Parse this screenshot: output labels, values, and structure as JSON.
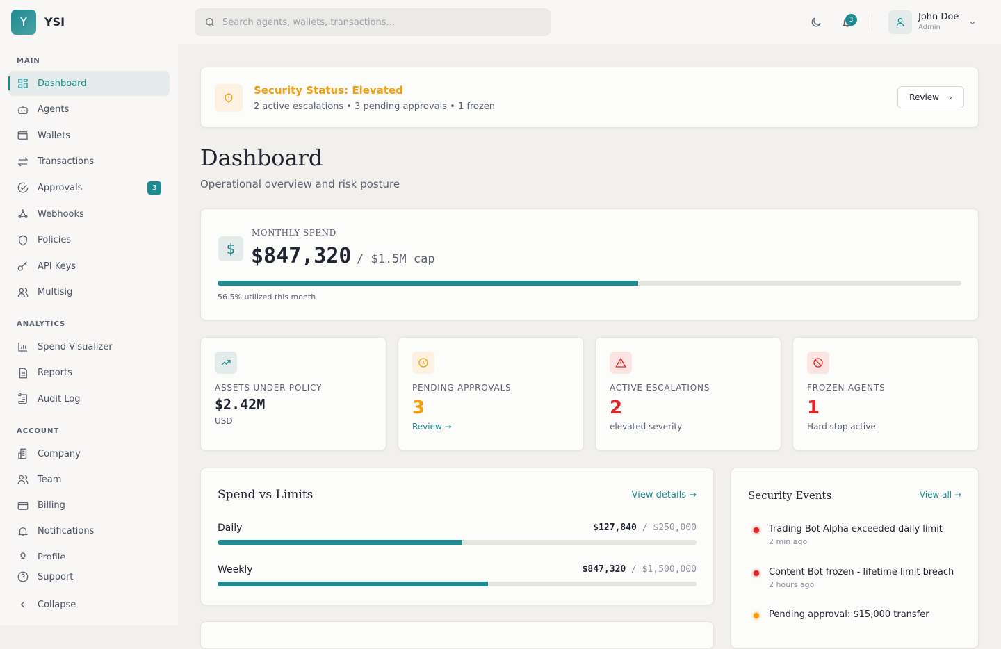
{
  "brand": {
    "logo_letter": "Y",
    "name": "YSI"
  },
  "search": {
    "placeholder": "Search agents, wallets, transactions..."
  },
  "user": {
    "name": "John Doe",
    "role": "Admin",
    "notifications": "3"
  },
  "sidebar": {
    "main_label": "MAIN",
    "analytics_label": "ANALYTICS",
    "account_label": "ACCOUNT",
    "main": [
      {
        "label": "Dashboard",
        "icon": "dashboard-icon"
      },
      {
        "label": "Agents",
        "icon": "robot-icon"
      },
      {
        "label": "Wallets",
        "icon": "wallet-icon"
      },
      {
        "label": "Transactions",
        "icon": "arrows-icon"
      },
      {
        "label": "Approvals",
        "icon": "check-circle-icon",
        "badge": "3"
      },
      {
        "label": "Webhooks",
        "icon": "webhook-icon"
      },
      {
        "label": "Policies",
        "icon": "shield-icon"
      },
      {
        "label": "API Keys",
        "icon": "key-icon"
      },
      {
        "label": "Multisig",
        "icon": "users-icon"
      }
    ],
    "analytics": [
      {
        "label": "Spend Visualizer",
        "icon": "bar-chart-icon"
      },
      {
        "label": "Reports",
        "icon": "file-icon"
      },
      {
        "label": "Audit Log",
        "icon": "scroll-icon"
      }
    ],
    "account": [
      {
        "label": "Company",
        "icon": "building-icon"
      },
      {
        "label": "Team",
        "icon": "users-icon"
      },
      {
        "label": "Billing",
        "icon": "credit-card-icon"
      },
      {
        "label": "Notifications",
        "icon": "bell-icon"
      },
      {
        "label": "Profile",
        "icon": "user-icon"
      }
    ],
    "support": "Support",
    "collapse": "Collapse"
  },
  "alert": {
    "title": "Security Status: Elevated",
    "detail": "2 active escalations • 3 pending approvals • 1 frozen",
    "button": "Review"
  },
  "page": {
    "title": "Dashboard",
    "subtitle": "Operational overview and risk posture"
  },
  "monthly": {
    "label": "MONTHLY SPEND",
    "value": "$847,320",
    "cap": "/ $1.5M cap",
    "percent": 56.5,
    "note": "56.5% utilized this month"
  },
  "stats": [
    {
      "label": "ASSETS UNDER POLICY",
      "value": "$2.42M",
      "sub": "USD",
      "color": "#1f2430"
    },
    {
      "label": "PENDING APPROVALS",
      "value": "3",
      "sub": "Review →",
      "color": "#f59e0b"
    },
    {
      "label": "ACTIVE ESCALATIONS",
      "value": "2",
      "sub": "elevated severity",
      "color": "#dc2626"
    },
    {
      "label": "FROZEN AGENTS",
      "value": "1",
      "sub": "Hard stop active",
      "color": "#dc2626"
    }
  ],
  "limits": {
    "title": "Spend vs Limits",
    "link": "View details →",
    "rows": [
      {
        "label": "Daily",
        "used": "$127,840",
        "limit": "$250,000",
        "percent": 51.1
      },
      {
        "label": "Weekly",
        "used": "$847,320",
        "limit": "$1,500,000",
        "percent": 56.5
      }
    ]
  },
  "events": {
    "title": "Security Events",
    "link": "View all →",
    "items": [
      {
        "text": "Trading Bot Alpha exceeded daily limit",
        "time": "2 min ago",
        "color": "#dc2626"
      },
      {
        "text": "Content Bot frozen - lifetime limit breach",
        "time": "2 hours ago",
        "color": "#dc2626"
      },
      {
        "text": "Pending approval: $15,000 transfer",
        "time": "",
        "color": "#f59e0b"
      }
    ]
  },
  "colors": {
    "accent": "#1f8a8f",
    "warning": "#f59e0b",
    "danger": "#dc2626"
  }
}
